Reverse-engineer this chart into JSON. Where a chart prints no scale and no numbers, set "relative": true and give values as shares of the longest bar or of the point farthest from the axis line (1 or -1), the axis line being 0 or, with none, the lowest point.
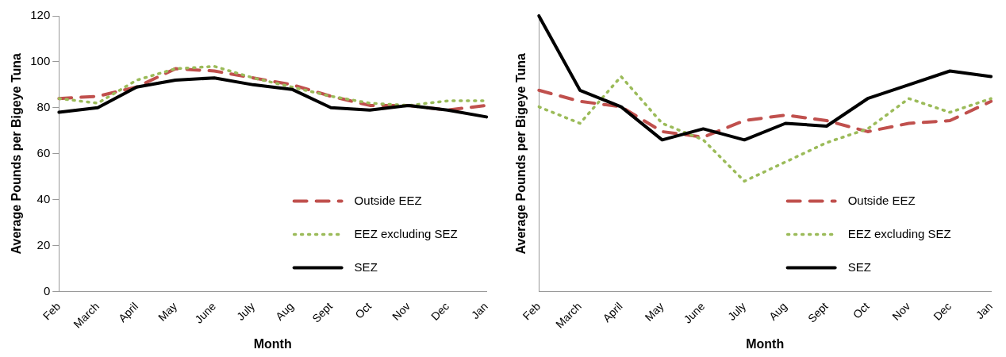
{
  "chart_data": [
    {
      "type": "line",
      "xlabel": "Month",
      "ylabel": "Average Pounds per Bigeye Tuna",
      "categories": [
        "Feb",
        "March",
        "April",
        "May",
        "June",
        "July",
        "Aug",
        "Sept",
        "Oct",
        "Nov",
        "Dec",
        "Jan"
      ],
      "ylim": [
        0,
        120
      ],
      "yticks": [
        0,
        20,
        40,
        60,
        80,
        100,
        120
      ],
      "grid": false,
      "legend": "bottom right",
      "marker": "none",
      "series": [
        {
          "name": "Outside EEZ",
          "color": "#c0504d",
          "line_style": "dashed",
          "values": [
            84,
            85,
            89,
            97,
            96,
            93,
            90,
            85,
            81,
            81,
            79,
            81
          ]
        },
        {
          "name": "EEZ excluding SEZ",
          "color": "#9bbb59",
          "line_style": "dotted",
          "values": [
            84,
            82,
            92,
            97,
            98,
            93,
            89,
            85,
            82,
            81,
            83,
            83
          ]
        },
        {
          "name": "SEZ",
          "color": "#000000",
          "line_style": "solid",
          "values": [
            78,
            80,
            89,
            92,
            93,
            90,
            88,
            80,
            79,
            81,
            79,
            76
          ]
        }
      ]
    },
    {
      "type": "line",
      "relative": true,
      "xlabel": "Month",
      "ylabel": "Average Pounds per Bigeye Tuna",
      "categories": [
        "Feb",
        "March",
        "April",
        "May",
        "June",
        "July",
        "Aug",
        "Sept",
        "Oct",
        "Nov",
        "Dec",
        "Jan"
      ],
      "grid": false,
      "legend": "bottom right",
      "marker": "none",
      "series": [
        {
          "name": "Outside EEZ",
          "color": "#c0504d",
          "line_style": "dashed",
          "values": [
            0.73,
            0.69,
            0.67,
            0.58,
            0.56,
            0.62,
            0.64,
            0.62,
            0.58,
            0.61,
            0.62,
            0.69
          ]
        },
        {
          "name": "EEZ excluding SEZ",
          "color": "#9bbb59",
          "line_style": "dotted",
          "values": [
            0.67,
            0.61,
            0.78,
            0.61,
            0.55,
            0.4,
            0.47,
            0.54,
            0.59,
            0.7,
            0.65,
            0.7
          ]
        },
        {
          "name": "SEZ",
          "color": "#000000",
          "line_style": "solid",
          "values": [
            1,
            0.73,
            0.67,
            0.55,
            0.59,
            0.55,
            0.61,
            0.6,
            0.7,
            0.75,
            0.8,
            0.78
          ]
        }
      ]
    }
  ]
}
